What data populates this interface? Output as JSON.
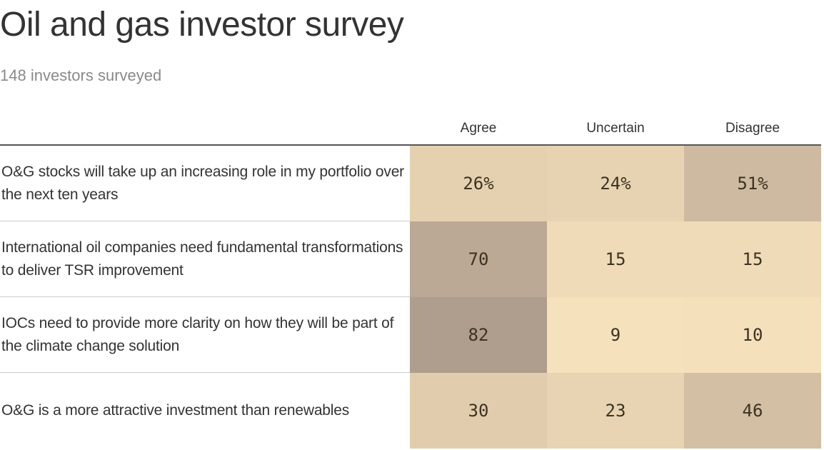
{
  "chart_data": {
    "type": "heatmap",
    "title": "Oil and gas investor survey",
    "subtitle": "148 investors surveyed",
    "columns": [
      "Agree",
      "Uncertain",
      "Disagree"
    ],
    "rows": [
      {
        "label": "O&G stocks will take up an increasing role in my portfolio over the next ten years",
        "values": [
          26,
          24,
          51
        ],
        "display": [
          "26%",
          "24%",
          "51%"
        ]
      },
      {
        "label": "International oil companies need fundamental transformations to deliver TSR improvement",
        "values": [
          70,
          15,
          15
        ],
        "display": [
          "70",
          "15",
          "15"
        ]
      },
      {
        "label": "IOCs need to provide more clarity on how they will be part of the climate change solution",
        "values": [
          82,
          9,
          10
        ],
        "display": [
          "82",
          "9",
          "10"
        ]
      },
      {
        "label": "O&G is a more attractive investment than renewables",
        "values": [
          30,
          23,
          46
        ],
        "display": [
          "30",
          "23",
          "46"
        ]
      }
    ],
    "color_scale": {
      "low": "#f5e1bb",
      "high": "#af9d8d"
    }
  }
}
